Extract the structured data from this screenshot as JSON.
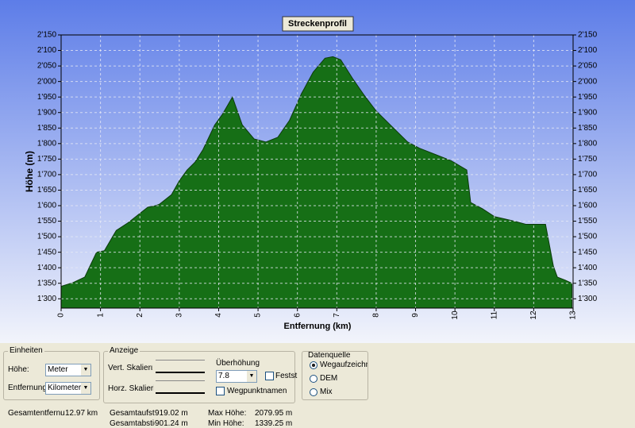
{
  "chart_data": {
    "type": "area",
    "title": "Streckenprofil",
    "x_label": "Entfernung (km)",
    "y_label": "Höhe (m)",
    "x": [
      0,
      0.3,
      0.6,
      0.75,
      0.9,
      1.1,
      1.4,
      1.7,
      2.0,
      2.2,
      2.4,
      2.5,
      2.8,
      3.0,
      3.2,
      3.4,
      3.6,
      3.9,
      4.1,
      4.35,
      4.6,
      4.9,
      5.2,
      5.5,
      5.8,
      6.1,
      6.4,
      6.7,
      6.9,
      7.1,
      7.4,
      7.7,
      8.0,
      8.4,
      8.8,
      9.1,
      9.5,
      9.9,
      10.3,
      10.4,
      10.7,
      11.0,
      11.5,
      11.8,
      12.3,
      12.5,
      12.6,
      12.8,
      12.97
    ],
    "series": [
      {
        "color": "#166f16",
        "values": [
          1340,
          1352,
          1370,
          1410,
          1450,
          1455,
          1520,
          1545,
          1575,
          1595,
          1600,
          1605,
          1635,
          1680,
          1715,
          1740,
          1780,
          1860,
          1895,
          1950,
          1860,
          1815,
          1805,
          1820,
          1875,
          1960,
          2030,
          2075,
          2080,
          2070,
          2010,
          1955,
          1905,
          1855,
          1805,
          1785,
          1765,
          1745,
          1715,
          1610,
          1590,
          1565,
          1550,
          1540,
          1540,
          1405,
          1370,
          1360,
          1350
        ]
      }
    ],
    "xlim": [
      0,
      13
    ],
    "xticks": [
      0,
      1,
      2,
      3,
      4,
      5,
      6,
      7,
      8,
      9,
      10,
      11,
      12,
      13
    ],
    "ylim": [
      1270,
      2150
    ],
    "yticks": [
      {
        "value": 1300,
        "label": "1'300"
      },
      {
        "value": 1350,
        "label": "1'350"
      },
      {
        "value": 1400,
        "label": "1'400"
      },
      {
        "value": 1450,
        "label": "1'450"
      },
      {
        "value": 1500,
        "label": "1'500"
      },
      {
        "value": 1550,
        "label": "1'550"
      },
      {
        "value": 1600,
        "label": "1'600"
      },
      {
        "value": 1650,
        "label": "1'650"
      },
      {
        "value": 1700,
        "label": "1'700"
      },
      {
        "value": 1750,
        "label": "1'750"
      },
      {
        "value": 1800,
        "label": "1'800"
      },
      {
        "value": 1850,
        "label": "1'850"
      },
      {
        "value": 1900,
        "label": "1'900"
      },
      {
        "value": 1950,
        "label": "1'950"
      },
      {
        "value": 2000,
        "label": "2'000"
      },
      {
        "value": 2050,
        "label": "2'050"
      },
      {
        "value": 2100,
        "label": "2'100"
      },
      {
        "value": 2150,
        "label": "2'150"
      }
    ],
    "grid": true
  },
  "controls": {
    "einheiten": {
      "legend": "Einheiten",
      "hoehe_label": "Höhe:",
      "hoehe_value": "Meter",
      "entfernung_label": "Entfernung:",
      "entfernung_value": "Kilometer"
    },
    "anzeige": {
      "legend": "Anzeige",
      "vert_label": "Vert. Skalierι",
      "horz_label": "Horz. Skalieri",
      "ueberhoehung_label": "Überhöhung",
      "ueberhoehung_value": "7.8",
      "festst_label": "Festst",
      "wegpunkt_label": "Wegpunktnamen"
    },
    "datenquelle": {
      "legend": "Datenquelle",
      "options": [
        "Wegaufzeichnı",
        "DEM",
        "Mix"
      ]
    }
  },
  "stats": {
    "entfernung_label": "Gesamtentfernur",
    "entfernung_value": "12.97 km",
    "aufstieg_label": "Gesamtaufstieç",
    "aufstieg_value": "919.02 m",
    "abstieg_label": "Gesamtabstieg:",
    "abstieg_value": "901.24 m",
    "max_label": "Max Höhe:",
    "max_value": "2079.95 m",
    "min_label": "Min Höhe:",
    "min_value": "1339.25 m"
  }
}
